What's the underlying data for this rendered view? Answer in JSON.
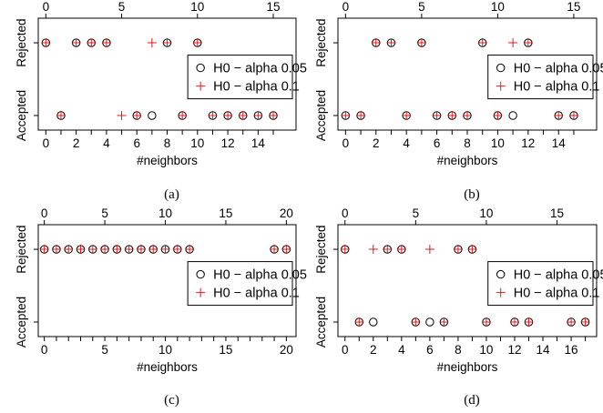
{
  "panels": [
    {
      "caption": "(a)",
      "xlabel": "#neighbors",
      "y_tick_labels": [
        "Accepted",
        "Rejected"
      ],
      "legend": [
        {
          "symbol": "circle",
          "label": "H0 − alpha 0.05"
        },
        {
          "symbol": "plus",
          "label": "H0 − alpha 0.1"
        }
      ]
    },
    {
      "caption": "(b)",
      "xlabel": "#neighbors",
      "y_tick_labels": [
        "Accepted",
        "Rejected"
      ],
      "legend": [
        {
          "symbol": "circle",
          "label": "H0 − alpha 0.05"
        },
        {
          "symbol": "plus",
          "label": "H0 − alpha 0.1"
        }
      ]
    },
    {
      "caption": "(c)",
      "xlabel": "#neighbors",
      "y_tick_labels": [
        "Accepted",
        "Rejected"
      ],
      "legend": [
        {
          "symbol": "circle",
          "label": "H0 − alpha 0.05"
        },
        {
          "symbol": "plus",
          "label": "H0 − alpha 0.1"
        }
      ]
    },
    {
      "caption": "(d)",
      "xlabel": "#neighbors",
      "y_tick_labels": [
        "Accepted",
        "Rejected"
      ],
      "legend": [
        {
          "symbol": "circle",
          "label": "H0 − alpha 0.05"
        },
        {
          "symbol": "plus",
          "label": "H0 − alpha 0.1"
        }
      ]
    }
  ],
  "colors": {
    "alpha_0_05": "#000000",
    "alpha_0_1": "#e41a1c"
  },
  "chart_data": [
    {
      "type": "scatter",
      "xlabel": "#neighbors",
      "y_categories": [
        "Accepted",
        "Rejected"
      ],
      "xlim": [
        0,
        15
      ],
      "x_ticks": [
        0,
        5,
        10,
        15
      ],
      "legend_position": "right",
      "series": [
        {
          "name": "H0 − alpha 0.05",
          "marker": "circle",
          "x": [
            0,
            1,
            2,
            3,
            4,
            6,
            7,
            8,
            9,
            10,
            11,
            12,
            13,
            14,
            15
          ],
          "y": [
            "Rejected",
            "Accepted",
            "Rejected",
            "Rejected",
            "Rejected",
            "Accepted",
            "Accepted",
            "Rejected",
            "Accepted",
            "Rejected",
            "Accepted",
            "Accepted",
            "Accepted",
            "Accepted",
            "Accepted"
          ]
        },
        {
          "name": "H0 − alpha 0.1",
          "marker": "plus",
          "x": [
            0,
            1,
            2,
            3,
            4,
            5,
            6,
            7,
            8,
            9,
            10,
            11,
            12,
            13,
            14,
            15
          ],
          "y": [
            "Rejected",
            "Accepted",
            "Rejected",
            "Rejected",
            "Rejected",
            "Accepted",
            "Accepted",
            "Rejected",
            "Rejected",
            "Accepted",
            "Rejected",
            "Accepted",
            "Accepted",
            "Accepted",
            "Accepted",
            "Accepted"
          ]
        }
      ]
    },
    {
      "type": "scatter",
      "xlabel": "#neighbors",
      "y_categories": [
        "Accepted",
        "Rejected"
      ],
      "xlim": [
        0,
        15
      ],
      "x_ticks": [
        0,
        5,
        10,
        15
      ],
      "legend_position": "right",
      "series": [
        {
          "name": "H0 − alpha 0.05",
          "marker": "circle",
          "x": [
            0,
            1,
            2,
            3,
            4,
            5,
            6,
            7,
            8,
            9,
            10,
            11,
            12,
            14,
            15
          ],
          "y": [
            "Accepted",
            "Accepted",
            "Rejected",
            "Rejected",
            "Accepted",
            "Rejected",
            "Accepted",
            "Accepted",
            "Accepted",
            "Rejected",
            "Accepted",
            "Accepted",
            "Rejected",
            "Accepted",
            "Accepted"
          ]
        },
        {
          "name": "H0 − alpha 0.1",
          "marker": "plus",
          "x": [
            0,
            1,
            2,
            3,
            4,
            5,
            6,
            7,
            8,
            9,
            10,
            11,
            12,
            14,
            15
          ],
          "y": [
            "Accepted",
            "Accepted",
            "Rejected",
            "Rejected",
            "Accepted",
            "Rejected",
            "Accepted",
            "Accepted",
            "Accepted",
            "Rejected",
            "Accepted",
            "Rejected",
            "Rejected",
            "Accepted",
            "Accepted"
          ]
        }
      ]
    },
    {
      "type": "scatter",
      "xlabel": "#neighbors",
      "y_categories": [
        "Accepted",
        "Rejected"
      ],
      "xlim": [
        0,
        20
      ],
      "x_ticks": [
        0,
        5,
        10,
        15,
        20
      ],
      "legend_position": "right",
      "series": [
        {
          "name": "H0 − alpha 0.05",
          "marker": "circle",
          "x": [
            0,
            1,
            2,
            3,
            4,
            5,
            6,
            7,
            8,
            9,
            10,
            11,
            12,
            19,
            20
          ],
          "y": [
            "Rejected",
            "Rejected",
            "Rejected",
            "Rejected",
            "Rejected",
            "Rejected",
            "Rejected",
            "Rejected",
            "Rejected",
            "Rejected",
            "Rejected",
            "Rejected",
            "Rejected",
            "Rejected",
            "Rejected"
          ]
        },
        {
          "name": "H0 − alpha 0.1",
          "marker": "plus",
          "x": [
            0,
            1,
            2,
            3,
            4,
            5,
            6,
            7,
            8,
            9,
            10,
            11,
            12,
            19,
            20
          ],
          "y": [
            "Rejected",
            "Rejected",
            "Rejected",
            "Rejected",
            "Rejected",
            "Rejected",
            "Rejected",
            "Rejected",
            "Rejected",
            "Rejected",
            "Rejected",
            "Rejected",
            "Rejected",
            "Rejected",
            "Rejected"
          ]
        }
      ]
    },
    {
      "type": "scatter",
      "xlabel": "#neighbors",
      "y_categories": [
        "Accepted",
        "Rejected"
      ],
      "xlim": [
        0,
        17
      ],
      "x_ticks": [
        0,
        5,
        10,
        15
      ],
      "legend_position": "right",
      "series": [
        {
          "name": "H0 − alpha 0.05",
          "marker": "circle",
          "x": [
            0,
            1,
            2,
            3,
            4,
            5,
            6,
            7,
            8,
            9,
            10,
            12,
            13,
            16,
            17
          ],
          "y": [
            "Rejected",
            "Accepted",
            "Accepted",
            "Rejected",
            "Rejected",
            "Accepted",
            "Accepted",
            "Accepted",
            "Rejected",
            "Rejected",
            "Accepted",
            "Accepted",
            "Accepted",
            "Accepted",
            "Accepted"
          ]
        },
        {
          "name": "H0 − alpha 0.1",
          "marker": "plus",
          "x": [
            0,
            1,
            2,
            3,
            4,
            5,
            6,
            7,
            8,
            9,
            10,
            12,
            13,
            16,
            17
          ],
          "y": [
            "Rejected",
            "Accepted",
            "Rejected",
            "Rejected",
            "Rejected",
            "Accepted",
            "Rejected",
            "Accepted",
            "Rejected",
            "Rejected",
            "Accepted",
            "Accepted",
            "Accepted",
            "Accepted",
            "Accepted"
          ]
        }
      ]
    }
  ]
}
